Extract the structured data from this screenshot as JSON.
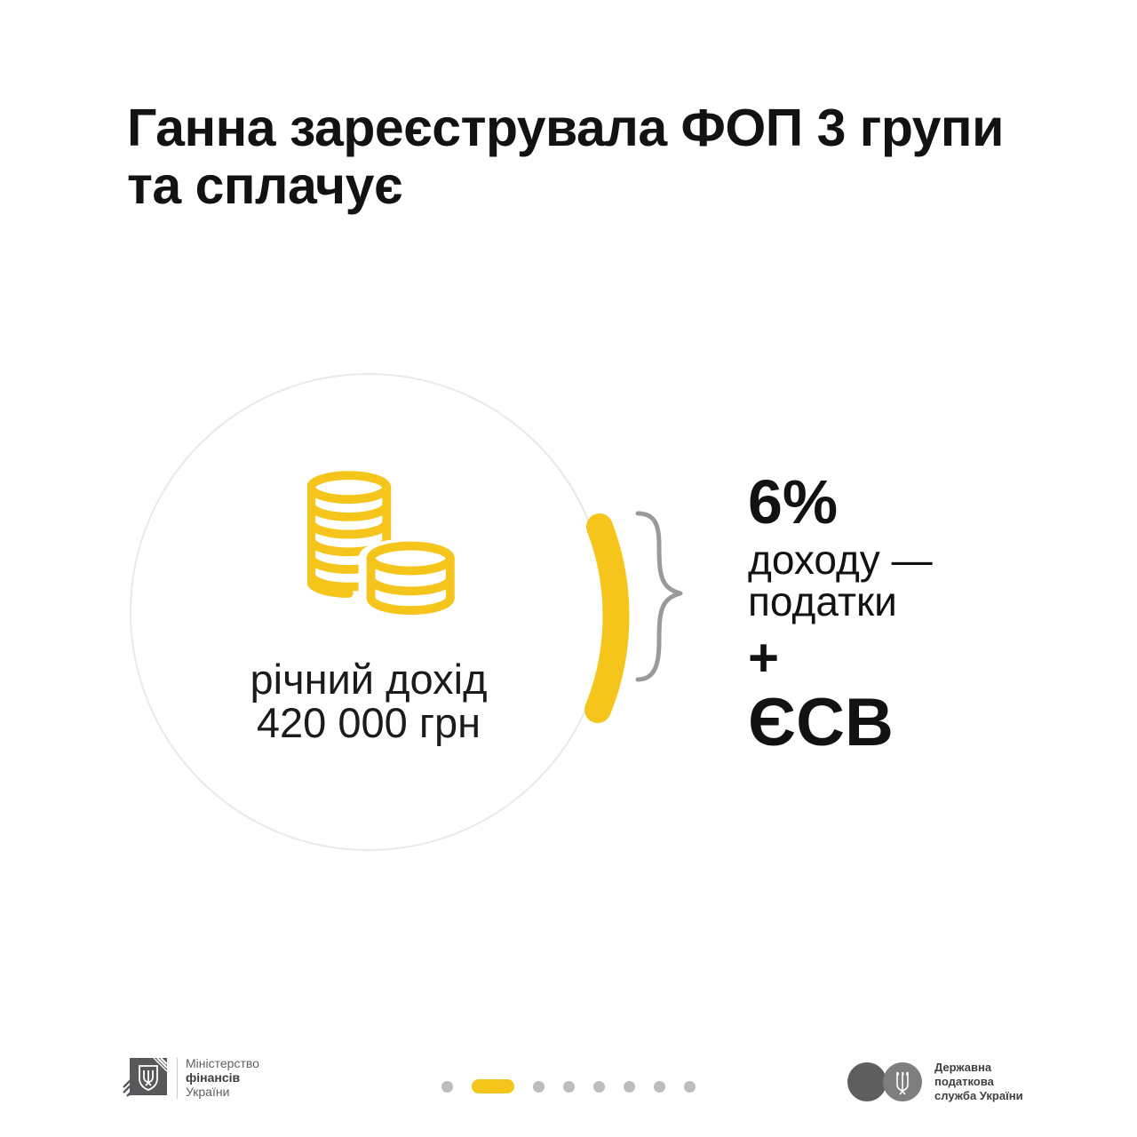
{
  "theme": {
    "accent_yellow": "#f5c51b",
    "text_black": "#121212",
    "circle_border_gray": "#e9e9e9",
    "brace_gray": "#9a9a9a",
    "footer_gray": "#5f5f5f",
    "dot_gray": "#bcbcbc"
  },
  "title": {
    "line1": "Ганна зареєструвала ФОП 3 групи",
    "line2": "та сплачує"
  },
  "circle": {
    "icon": "coins-icon",
    "label_line1": "річний дохід",
    "label_line2": "420 000 грн"
  },
  "result": {
    "percent": "6%",
    "line1": "доходу —",
    "line2": "податки",
    "plus": "+",
    "esv": "ЄСВ"
  },
  "footer": {
    "ministry": {
      "icon": "minfin-emblem-icon",
      "line1": "Міністерство",
      "line2": "фінансів",
      "line3": "України"
    },
    "pagination": {
      "total": 8,
      "active_index": 1
    },
    "tax_service": {
      "icon": "tax-service-emblem-icon",
      "line1": "Державна",
      "line2": "податкова",
      "line3": "служба України"
    }
  }
}
